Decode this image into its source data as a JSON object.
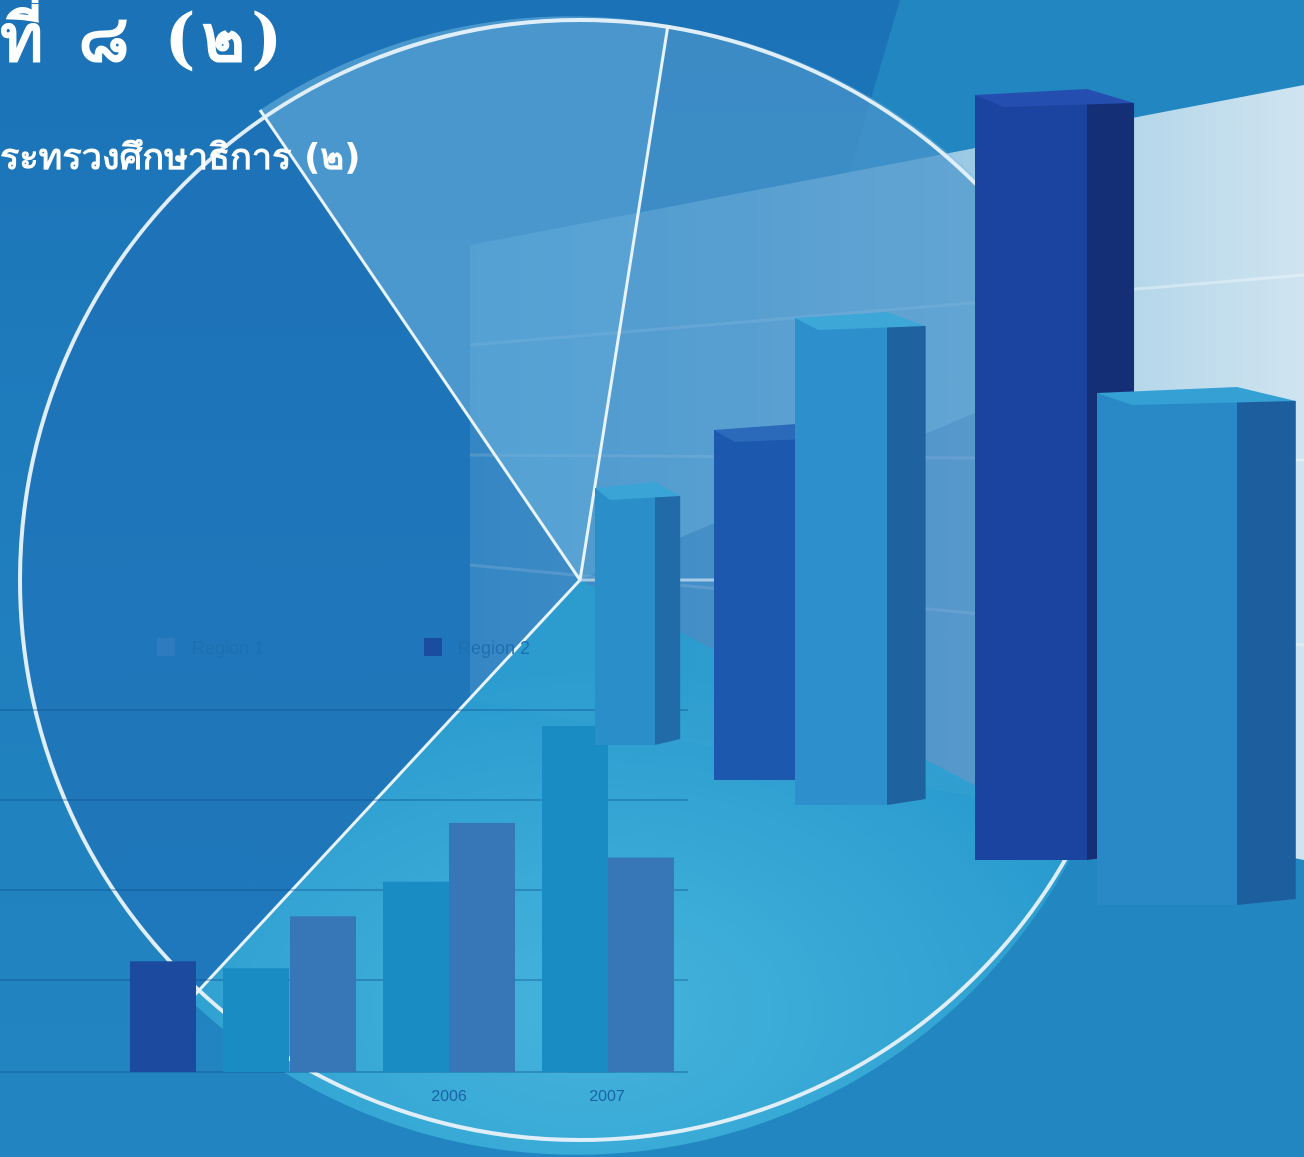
{
  "cover": {
    "title": "ที่ ๘ (๒)",
    "subtitle": "ระทรวงศึกษาธิการ (๒)"
  },
  "chart_data": [
    {
      "type": "bar",
      "title": "",
      "xlabel": "",
      "ylabel": "",
      "categories": [
        "",
        "2006",
        "2007"
      ],
      "series": [
        {
          "name": "Region 1",
          "values": [
            0.3,
            0.55,
            1.0
          ]
        },
        {
          "name": "Region 2",
          "values": [
            0.45,
            0.72,
            0.62
          ]
        }
      ],
      "legend_position": "top",
      "grid": true
    },
    {
      "type": "bar",
      "categories": [
        "",
        "",
        "",
        ""
      ],
      "series": [
        {
          "name": "",
          "values": [
            0.52,
            0.68,
            1.0,
            0.72
          ]
        },
        {
          "name": "",
          "values": [
            0.42,
            0.63,
            0.0,
            0.0
          ]
        }
      ]
    }
  ],
  "colors": {
    "background": "#2389c0",
    "dark_bar": "#1c4a9e",
    "light_bar": "#2585c2",
    "mid_bar": "#3877b7"
  }
}
